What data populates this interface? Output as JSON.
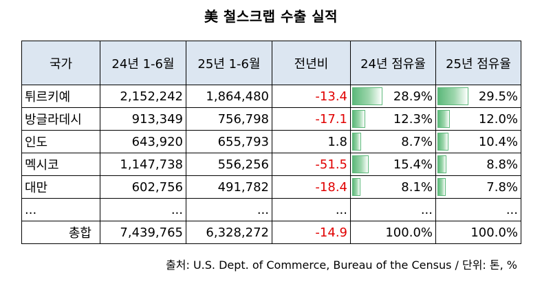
{
  "title": "美 철스크랩 수출 실적",
  "headers": [
    "국가",
    "24년 1-6월",
    "25년 1-6월",
    "전년비",
    "24년 점유율",
    "25년 점유율"
  ],
  "rows": [
    {
      "country": "튀르키예",
      "y24": "2,152,242",
      "y25": "1,864,480",
      "yoy": "-13.4",
      "share24": "28.9%",
      "share25": "29.5%",
      "share24_value": 28.9,
      "share25_value": 29.5
    },
    {
      "country": "방글라데시",
      "y24": "913,349",
      "y25": "756,798",
      "yoy": "-17.1",
      "share24": "12.3%",
      "share25": "12.0%",
      "share24_value": 12.3,
      "share25_value": 12.0
    },
    {
      "country": "인도",
      "y24": "643,920",
      "y25": "655,793",
      "yoy": "1.8",
      "share24": "8.7%",
      "share25": "10.4%",
      "share24_value": 8.7,
      "share25_value": 10.4
    },
    {
      "country": "멕시코",
      "y24": "1,147,738",
      "y25": "556,256",
      "yoy": "-51.5",
      "share24": "15.4%",
      "share25": "8.8%",
      "share24_value": 15.4,
      "share25_value": 8.8
    },
    {
      "country": "대만",
      "y24": "602,756",
      "y25": "491,782",
      "yoy": "-18.4",
      "share24": "8.1%",
      "share25": "7.8%",
      "share24_value": 8.1,
      "share25_value": 7.8
    }
  ],
  "ellipsis": "...",
  "total": {
    "label": "총합",
    "y24": "7,439,765",
    "y25": "6,328,272",
    "yoy": "-14.9",
    "share24": "100.0%",
    "share25": "100.0%"
  },
  "source": "출처: U.S. Dept. of Commerce, Bureau of the Census / 단위: 톤, %",
  "colors": {
    "header_bg": "#dce6f1",
    "negative": "#e00000",
    "bar": "#5cb87a"
  }
}
